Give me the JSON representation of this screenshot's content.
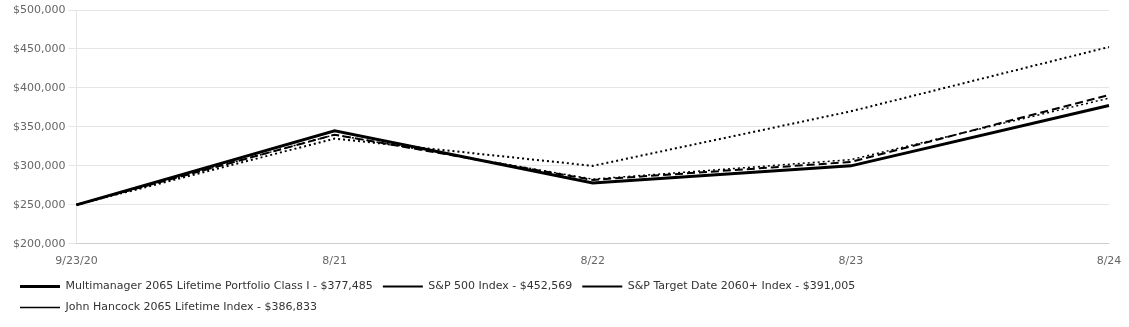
{
  "chart_data": {
    "type": "line",
    "categories": [
      "9/23/20",
      "8/21",
      "8/22",
      "8/23",
      "8/24"
    ],
    "series": [
      {
        "name": "Multimanager 2065 Lifetime Portfolio Class I - $377,485",
        "color": "#000000",
        "line_style": "solid",
        "values": [
          250000,
          345000,
          278000,
          300000,
          377485
        ]
      },
      {
        "name": "S&P 500 Index - $452,569",
        "color": "#000000",
        "line_style": "dotted",
        "values": [
          250000,
          335000,
          300000,
          370000,
          452569
        ]
      },
      {
        "name": "S&P Target Date 2060+ Index - $391,005",
        "color": "#000000",
        "line_style": "dashed",
        "values": [
          250000,
          340000,
          282000,
          305000,
          391005
        ]
      },
      {
        "name": "John Hancock 2065 Lifetime Index - $386,833",
        "color": "#000000",
        "line_style": "dotted",
        "values": [
          250000,
          340000,
          283000,
          308000,
          386833
        ]
      }
    ],
    "ylim": [
      200000,
      500000
    ],
    "yticks": [
      {
        "value": 200000,
        "label": "$200,000"
      },
      {
        "value": 250000,
        "label": "$250,000"
      },
      {
        "value": 300000,
        "label": "$300,000"
      },
      {
        "value": 350000,
        "label": "$350,000"
      },
      {
        "value": 400000,
        "label": "$400,000"
      },
      {
        "value": 450000,
        "label": "$450,000"
      },
      {
        "value": 500000,
        "label": "$500,000"
      }
    ],
    "grid": true,
    "legend": "bottom"
  }
}
